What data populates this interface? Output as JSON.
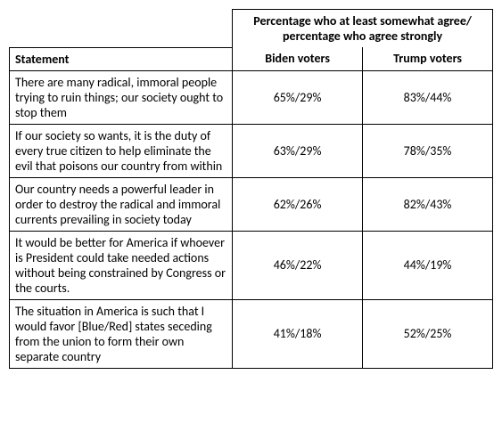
{
  "table": {
    "header_span": "Percentage who at least somewhat agree/ percentage who agree strongly",
    "statement_header": "Statement",
    "biden_header": "Biden voters",
    "trump_header": "Trump voters",
    "rows": [
      {
        "statement": "There are many radical, immoral people trying to ruin things; our society ought to stop them",
        "biden": "65%/29%",
        "trump": "83%/44%"
      },
      {
        "statement": "If our society so wants, it is the duty of every true citizen to help eliminate the evil that poisons our country from within",
        "biden": "63%/29%",
        "trump": "78%/35%"
      },
      {
        "statement": "Our country needs a powerful leader in order to destroy the radical and immoral currents prevailing in society today",
        "biden": "62%/26%",
        "trump": "82%/43%"
      },
      {
        "statement": "It would be better for America if whoever is President could take needed actions without being constrained by Congress or the courts.",
        "biden": "46%/22%",
        "trump": "44%/19%"
      },
      {
        "statement": "The situation in America is such that I would favor [Blue/Red] states seceding from the union to form their own separate country",
        "biden": "41%/18%",
        "trump": "52%/25%"
      }
    ]
  }
}
